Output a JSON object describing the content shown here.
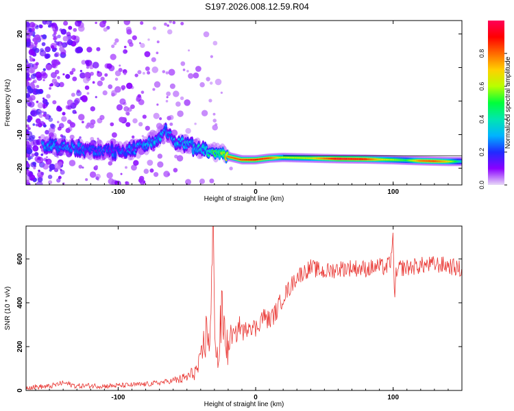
{
  "title": "S197.2026.008.12.59.R04",
  "colors": {
    "axis": "#000000",
    "snr_line": "#e8322e",
    "spectrogram_bg": "#ffffff"
  },
  "chart_data": [
    {
      "type": "heatmap",
      "name": "spectrogram",
      "xlabel": "Height of straight line (km)",
      "ylabel": "Frequency (Hz)",
      "xlim": [
        -167,
        150
      ],
      "ylim": [
        -25,
        24
      ],
      "xticks": [
        -100,
        0,
        100
      ],
      "yticks": [
        -20,
        -10,
        0,
        10,
        20
      ],
      "grid": false,
      "colorbar": {
        "label": "Normalized spectral amplitude",
        "range": [
          0,
          1
        ],
        "ticks": [
          0.0,
          0.2,
          0.4,
          0.6,
          0.8
        ],
        "colormap": [
          "#e8d9f7",
          "#8a00ff",
          "#1f2bff",
          "#00b4ff",
          "#00e6b0",
          "#00ff3a",
          "#b8ff00",
          "#ffd000",
          "#ff6a00",
          "#ff0000",
          "#ff0058"
        ]
      },
      "ridge": {
        "description": "dominant frequency track vs height",
        "x": [
          -150,
          -140,
          -120,
          -100,
          -85,
          -75,
          -65,
          -58,
          -50,
          -42,
          -35,
          -30,
          -25,
          -20,
          -15,
          -10,
          0,
          10,
          20,
          40,
          60,
          80,
          100,
          120,
          140,
          150
        ],
        "y": [
          -13,
          -13.5,
          -14.5,
          -15,
          -14,
          -12,
          -9,
          -12,
          -13,
          -14,
          -15,
          -15,
          -15.5,
          -16.5,
          -17,
          -17.5,
          -17.5,
          -17,
          -16.8,
          -17,
          -17.2,
          -17.3,
          -17.5,
          -17.8,
          -18,
          -18
        ]
      },
      "amplitude": {
        "description": "normalized peak amplitude along the ridge",
        "x": [
          -150,
          -120,
          -100,
          -80,
          -60,
          -40,
          -30,
          -20,
          -10,
          0,
          10,
          20,
          40,
          50,
          60,
          80,
          90,
          100,
          110,
          120,
          130,
          140,
          150
        ],
        "values": [
          0.3,
          0.25,
          0.25,
          0.3,
          0.3,
          0.35,
          0.5,
          0.8,
          0.85,
          0.9,
          0.85,
          0.6,
          0.65,
          0.8,
          0.95,
          0.9,
          0.7,
          0.6,
          0.5,
          0.8,
          0.85,
          0.7,
          0.35
        ]
      }
    },
    {
      "type": "line",
      "name": "snr",
      "xlabel": "Height of straight line (km)",
      "ylabel": "SNR (10 * v/v)",
      "xlim": [
        -167,
        150
      ],
      "ylim": [
        0,
        750
      ],
      "xticks": [
        -100,
        0,
        100
      ],
      "yticks": [
        0,
        200,
        400,
        600
      ],
      "grid": false,
      "series": [
        {
          "name": "SNR",
          "color": "#e8322e",
          "x": [
            -167,
            -150,
            -140,
            -130,
            -120,
            -110,
            -100,
            -90,
            -80,
            -70,
            -60,
            -55,
            -50,
            -45,
            -42,
            -40,
            -38,
            -35,
            -33,
            -31,
            -29,
            -27,
            -25,
            -22,
            -20,
            -18,
            -15,
            -12,
            -10,
            -8,
            -5,
            -2,
            0,
            5,
            10,
            15,
            20,
            25,
            30,
            40,
            50,
            60,
            70,
            80,
            90,
            95,
            99,
            100,
            101,
            102,
            105,
            110,
            120,
            130,
            140,
            150
          ],
          "values": [
            15,
            18,
            35,
            20,
            22,
            20,
            22,
            25,
            28,
            35,
            45,
            50,
            60,
            80,
            100,
            130,
            200,
            280,
            230,
            700,
            200,
            120,
            350,
            250,
            180,
            260,
            240,
            300,
            280,
            260,
            310,
            290,
            280,
            340,
            320,
            360,
            430,
            470,
            520,
            560,
            540,
            555,
            560,
            555,
            565,
            560,
            600,
            750,
            380,
            520,
            560,
            560,
            570,
            575,
            570,
            550
          ]
        }
      ]
    }
  ]
}
